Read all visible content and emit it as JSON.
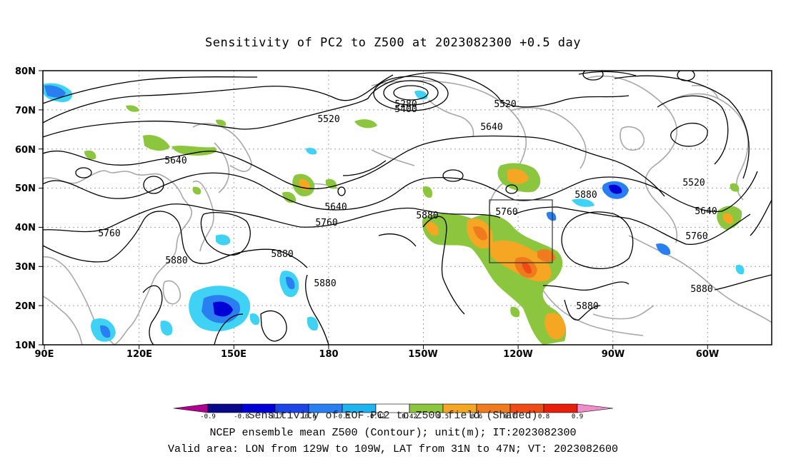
{
  "title": "Sensitivity of PC2 to Z500 at 2023082300 +0.5 day",
  "map": {
    "lat_labels": [
      "80N",
      "70N",
      "60N",
      "50N",
      "40N",
      "30N",
      "20N",
      "10N"
    ],
    "lon_labels": [
      "90E",
      "120E",
      "150E",
      "180",
      "150W",
      "120W",
      "90W",
      "60W"
    ],
    "contour_labels": [
      {
        "text": "5280"
      },
      {
        "text": "5400"
      },
      {
        "text": "5520"
      },
      {
        "text": "5520"
      },
      {
        "text": "5640"
      },
      {
        "text": "5640"
      },
      {
        "text": "5520"
      },
      {
        "text": "5640"
      },
      {
        "text": "5760"
      },
      {
        "text": "5760"
      },
      {
        "text": "5640"
      },
      {
        "text": "5760"
      },
      {
        "text": "5880"
      },
      {
        "text": "5880"
      },
      {
        "text": "5880"
      },
      {
        "text": "5880"
      },
      {
        "text": "5880"
      },
      {
        "text": "5880"
      },
      {
        "text": "5760"
      },
      {
        "text": "5880"
      }
    ],
    "valid_area": {
      "lon_from": "129W",
      "lon_to": "109W",
      "lat_from": "31N",
      "lat_to": "47N"
    }
  },
  "colorbar": {
    "labels": [
      "-0.9",
      "-0.8",
      "-0.7",
      "-0.6",
      "-0.5",
      "-0.42",
      "0.42",
      "0.5",
      "0.6",
      "0.7",
      "0.8",
      "0.9"
    ],
    "colors": {
      "magenta_neg": "#b0008f",
      "c1": "#08088a",
      "c2": "#0000d6",
      "c3": "#1d45e8",
      "c4": "#2a7ff0",
      "c5": "#1eb4f0",
      "c6": "#40d2f5",
      "white": "#ffffff",
      "c7": "#8cc63f",
      "c8": "#f5a623",
      "c9": "#f07a1e",
      "c10": "#f04b14",
      "c11": "#e61e0a",
      "c12": "#f00a0a",
      "pink_pos": "#f08cc8"
    }
  },
  "caption": {
    "line1": "Sensitivity of EOF PC2 to Z500 field (Shaded)",
    "line2": "NCEP ensemble mean Z500 (Contour); unit(m); IT:2023082300",
    "line3": "Valid area: LON from 129W to 109W, LAT from 31N to 47N; VT: 2023082600"
  }
}
